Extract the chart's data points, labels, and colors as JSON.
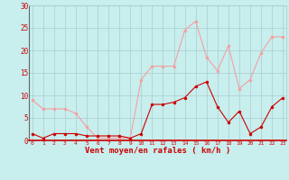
{
  "x": [
    0,
    1,
    2,
    3,
    4,
    5,
    6,
    7,
    8,
    9,
    10,
    11,
    12,
    13,
    14,
    15,
    16,
    17,
    18,
    19,
    20,
    21,
    22,
    23
  ],
  "wind_avg": [
    1.5,
    0.5,
    1.5,
    1.5,
    1.5,
    1.0,
    1.0,
    1.0,
    1.0,
    0.5,
    1.5,
    8.0,
    8.0,
    8.5,
    9.5,
    12.0,
    13.0,
    7.5,
    4.0,
    6.5,
    1.5,
    3.0,
    7.5,
    9.5
  ],
  "wind_gust": [
    9.0,
    7.0,
    7.0,
    7.0,
    6.0,
    3.0,
    0.5,
    0.5,
    0.5,
    0.5,
    13.5,
    16.5,
    16.5,
    16.5,
    24.5,
    26.5,
    18.5,
    15.5,
    21.0,
    11.5,
    13.5,
    19.5,
    23.0,
    23.0
  ],
  "color_avg": "#cc0000",
  "color_gust": "#f4a0a0",
  "xlabel": "Vent moyen/en rafales ( km/h )",
  "ylim": [
    0,
    30
  ],
  "yticks": [
    0,
    5,
    10,
    15,
    20,
    25,
    30
  ],
  "xlim": [
    -0.3,
    23.3
  ],
  "bg_color": "#c8eeee",
  "grid_color": "#aacccc",
  "xlabel_color": "#cc0000",
  "tick_color": "#cc0000",
  "figsize": [
    3.2,
    2.0
  ],
  "dpi": 100
}
